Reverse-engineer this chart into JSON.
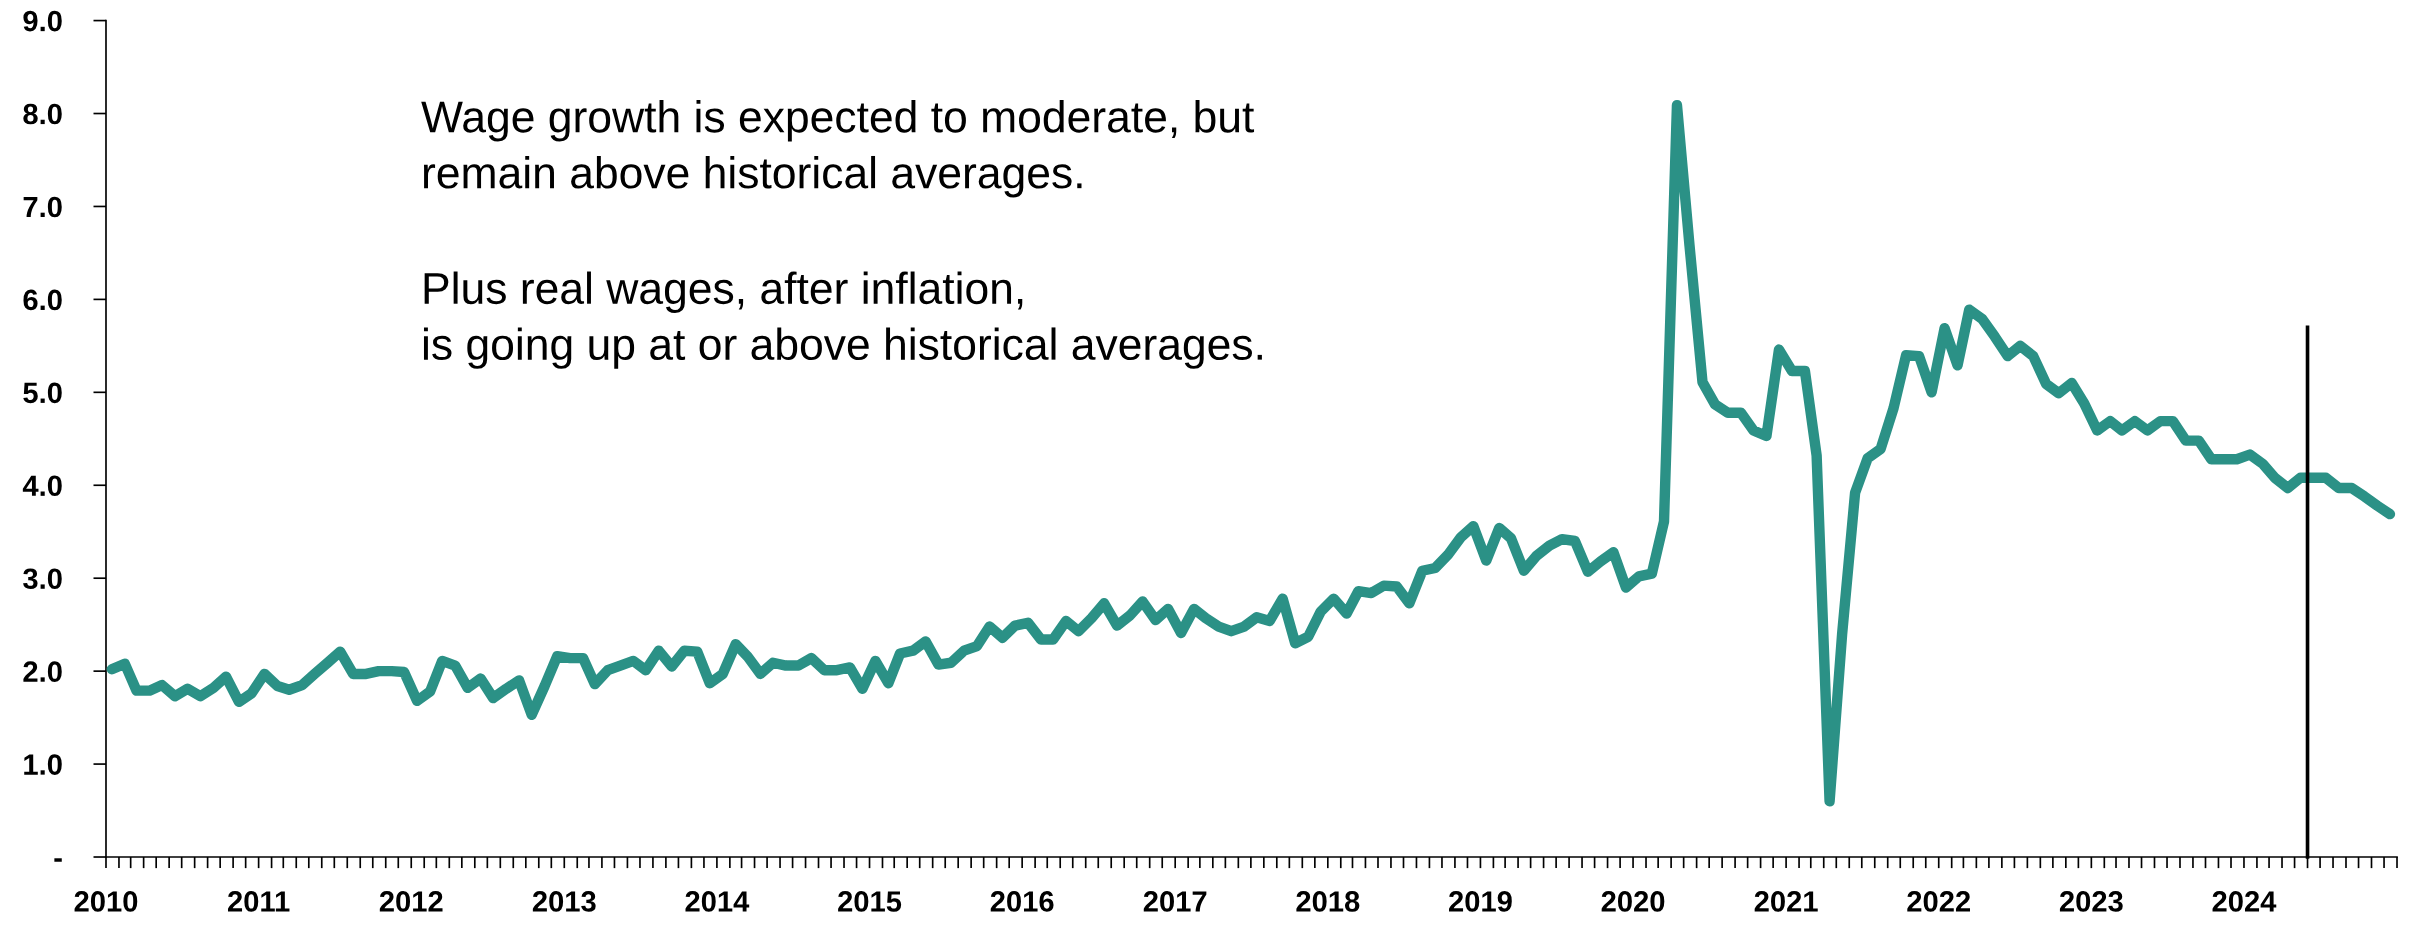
{
  "chart_data": {
    "type": "line",
    "annotations": [
      "Wage growth is expected to moderate, but\nremain above historical averages.",
      "Plus real wages, after inflation,\nis going up at or above historical averages."
    ],
    "series": [
      {
        "color": "#2b9186",
        "x": [
          "2010-01-15",
          "2010-02-15",
          "2010-03-15",
          "2010-04-15",
          "2010-05-15",
          "2010-06-15",
          "2010-07-15",
          "2010-08-15",
          "2010-09-15",
          "2010-10-15",
          "2010-11-15",
          "2010-12-15",
          "2011-01-15",
          "2011-02-15",
          "2011-03-15",
          "2011-04-15",
          "2011-05-15",
          "2011-06-15",
          "2011-07-15",
          "2011-08-15",
          "2011-09-15",
          "2011-10-15",
          "2011-11-15",
          "2011-12-15",
          "2012-01-15",
          "2012-02-15",
          "2012-03-15",
          "2012-04-15",
          "2012-05-15",
          "2012-06-15",
          "2012-07-15",
          "2012-08-15",
          "2012-09-15",
          "2012-10-15",
          "2012-11-15",
          "2012-12-15",
          "2013-01-15",
          "2013-02-15",
          "2013-03-15",
          "2013-04-15",
          "2013-05-15",
          "2013-06-15",
          "2013-07-15",
          "2013-08-15",
          "2013-09-15",
          "2013-10-15",
          "2013-11-15",
          "2013-12-15",
          "2014-01-15",
          "2014-02-15",
          "2014-03-15",
          "2014-04-15",
          "2014-05-15",
          "2014-06-15",
          "2014-07-15",
          "2014-08-15",
          "2014-09-15",
          "2014-10-15",
          "2014-11-15",
          "2014-12-15",
          "2015-01-15",
          "2015-02-15",
          "2015-03-15",
          "2015-04-15",
          "2015-05-15",
          "2015-06-15",
          "2015-07-15",
          "2015-08-15",
          "2015-09-15",
          "2015-10-15",
          "2015-11-15",
          "2015-12-15",
          "2016-01-15",
          "2016-02-15",
          "2016-03-15",
          "2016-04-15",
          "2016-05-15",
          "2016-06-15",
          "2016-07-15",
          "2016-08-15",
          "2016-09-15",
          "2016-10-15",
          "2016-11-15",
          "2016-12-15",
          "2017-01-15",
          "2017-02-15",
          "2017-03-15",
          "2017-04-15",
          "2017-05-15",
          "2017-06-15",
          "2017-07-15",
          "2017-08-15",
          "2017-09-15",
          "2017-10-15",
          "2017-11-15",
          "2017-12-15",
          "2018-01-15",
          "2018-02-15",
          "2018-03-15",
          "2018-04-15",
          "2018-05-15",
          "2018-06-15",
          "2018-07-15",
          "2018-08-15",
          "2018-09-15",
          "2018-10-15",
          "2018-11-15",
          "2018-12-15",
          "2019-01-15",
          "2019-02-15",
          "2019-03-15",
          "2019-04-15",
          "2019-05-15",
          "2019-06-15",
          "2019-07-15",
          "2019-08-15",
          "2019-09-15",
          "2019-10-15",
          "2019-11-15",
          "2019-12-15",
          "2020-01-15",
          "2020-02-15",
          "2020-03-15",
          "2020-04-15",
          "2020-05-15",
          "2020-06-15",
          "2020-07-15",
          "2020-08-15",
          "2020-09-15",
          "2020-10-15",
          "2020-11-15",
          "2020-12-15",
          "2021-01-15",
          "2021-02-15",
          "2021-03-15",
          "2021-04-15",
          "2021-05-15",
          "2021-06-15",
          "2021-07-15",
          "2021-08-15",
          "2021-09-15",
          "2021-10-15",
          "2021-11-15",
          "2021-12-15",
          "2022-01-15",
          "2022-02-15",
          "2022-03-15",
          "2022-04-15",
          "2022-05-15",
          "2022-06-15",
          "2022-07-15",
          "2022-08-15",
          "2022-09-15",
          "2022-10-15",
          "2022-11-15",
          "2022-12-15",
          "2023-01-15",
          "2023-02-15",
          "2023-03-15",
          "2023-04-15",
          "2023-05-15",
          "2023-06-15",
          "2023-07-15",
          "2023-08-15",
          "2023-09-15",
          "2023-10-15",
          "2023-11-15",
          "2023-12-15",
          "2024-01-15",
          "2024-02-15",
          "2024-03-15",
          "2024-04-15",
          "2024-05-15",
          "2024-06-15",
          "2024-07-15",
          "2024-08-15",
          "2024-09-15",
          "2024-10-15",
          "2024-11-15",
          "2024-12-15"
        ],
        "values": [
          2.02,
          2.08,
          1.79,
          1.79,
          1.85,
          1.73,
          1.81,
          1.73,
          1.82,
          1.94,
          1.67,
          1.76,
          1.97,
          1.84,
          1.8,
          1.85,
          1.97,
          2.09,
          2.21,
          1.97,
          1.97,
          2.0,
          2.0,
          1.99,
          1.68,
          1.78,
          2.11,
          2.06,
          1.82,
          1.92,
          1.71,
          1.81,
          1.9,
          1.53,
          1.84,
          2.16,
          2.14,
          2.14,
          1.86,
          2.01,
          2.06,
          2.11,
          2.01,
          2.22,
          2.05,
          2.22,
          2.21,
          1.87,
          1.97,
          2.29,
          2.16,
          1.97,
          2.09,
          2.06,
          2.06,
          2.14,
          2.01,
          2.01,
          2.04,
          1.81,
          2.11,
          1.87,
          2.19,
          2.22,
          2.32,
          2.07,
          2.09,
          2.22,
          2.27,
          2.48,
          2.36,
          2.49,
          2.52,
          2.34,
          2.34,
          2.54,
          2.43,
          2.57,
          2.73,
          2.49,
          2.6,
          2.75,
          2.55,
          2.67,
          2.41,
          2.67,
          2.57,
          2.48,
          2.43,
          2.48,
          2.58,
          2.54,
          2.78,
          2.3,
          2.37,
          2.64,
          2.78,
          2.62,
          2.86,
          2.84,
          2.92,
          2.91,
          2.73,
          3.08,
          3.11,
          3.25,
          3.44,
          3.56,
          3.19,
          3.54,
          3.43,
          3.08,
          3.24,
          3.35,
          3.42,
          3.4,
          3.07,
          3.18,
          3.28,
          2.9,
          3.02,
          3.05,
          3.61,
          8.09,
          6.58,
          5.11,
          4.87,
          4.78,
          4.78,
          4.59,
          4.53,
          5.46,
          5.23,
          5.23,
          4.32,
          0.6,
          2.4,
          3.92,
          4.29,
          4.39,
          4.83,
          5.4,
          5.39,
          5.0,
          5.69,
          5.29,
          5.89,
          5.79,
          5.6,
          5.39,
          5.5,
          5.39,
          5.09,
          4.99,
          5.1,
          4.88,
          4.59,
          4.69,
          4.59,
          4.69,
          4.59,
          4.69,
          4.69,
          4.48,
          4.48,
          4.28,
          4.28,
          4.28,
          4.33,
          4.23,
          4.08,
          3.97,
          4.08,
          4.08,
          4.08,
          3.97,
          3.97,
          3.88,
          3.78,
          3.69
        ]
      },
      {
        "color": "#000000",
        "x": [
          "2024-06-01",
          "2024-06-01"
        ],
        "values": [
          0,
          5.7
        ]
      }
    ],
    "xlim": [
      "2010-01-01",
      "2025-01-01"
    ],
    "xticks": [
      {
        "value": "2010-01-01",
        "label": "2010"
      },
      {
        "value": "2010-02-01",
        "label": null
      },
      {
        "value": "2010-03-01",
        "label": null
      },
      {
        "value": "2010-04-01",
        "label": null
      },
      {
        "value": "2010-05-01",
        "label": null
      },
      {
        "value": "2010-06-01",
        "label": null
      },
      {
        "value": "2010-07-01",
        "label": null
      },
      {
        "value": "2010-08-01",
        "label": null
      },
      {
        "value": "2010-09-01",
        "label": null
      },
      {
        "value": "2010-10-01",
        "label": null
      },
      {
        "value": "2010-11-01",
        "label": null
      },
      {
        "value": "2010-12-01",
        "label": null
      },
      {
        "value": "2011-01-01",
        "label": "2011"
      },
      {
        "value": "2011-02-01",
        "label": null
      },
      {
        "value": "2011-03-01",
        "label": null
      },
      {
        "value": "2011-04-01",
        "label": null
      },
      {
        "value": "2011-05-01",
        "label": null
      },
      {
        "value": "2011-06-01",
        "label": null
      },
      {
        "value": "2011-07-01",
        "label": null
      },
      {
        "value": "2011-08-01",
        "label": null
      },
      {
        "value": "2011-09-01",
        "label": null
      },
      {
        "value": "2011-10-01",
        "label": null
      },
      {
        "value": "2011-11-01",
        "label": null
      },
      {
        "value": "2011-12-01",
        "label": null
      },
      {
        "value": "2012-01-01",
        "label": "2012"
      },
      {
        "value": "2012-02-01",
        "label": null
      },
      {
        "value": "2012-03-01",
        "label": null
      },
      {
        "value": "2012-04-01",
        "label": null
      },
      {
        "value": "2012-05-01",
        "label": null
      },
      {
        "value": "2012-06-01",
        "label": null
      },
      {
        "value": "2012-07-01",
        "label": null
      },
      {
        "value": "2012-08-01",
        "label": null
      },
      {
        "value": "2012-09-01",
        "label": null
      },
      {
        "value": "2012-10-01",
        "label": null
      },
      {
        "value": "2012-11-01",
        "label": null
      },
      {
        "value": "2012-12-01",
        "label": null
      },
      {
        "value": "2013-01-01",
        "label": "2013"
      },
      {
        "value": "2013-02-01",
        "label": null
      },
      {
        "value": "2013-03-01",
        "label": null
      },
      {
        "value": "2013-04-01",
        "label": null
      },
      {
        "value": "2013-05-01",
        "label": null
      },
      {
        "value": "2013-06-01",
        "label": null
      },
      {
        "value": "2013-07-01",
        "label": null
      },
      {
        "value": "2013-08-01",
        "label": null
      },
      {
        "value": "2013-09-01",
        "label": null
      },
      {
        "value": "2013-10-01",
        "label": null
      },
      {
        "value": "2013-11-01",
        "label": null
      },
      {
        "value": "2013-12-01",
        "label": null
      },
      {
        "value": "2014-01-01",
        "label": "2014"
      },
      {
        "value": "2014-02-01",
        "label": null
      },
      {
        "value": "2014-03-01",
        "label": null
      },
      {
        "value": "2014-04-01",
        "label": null
      },
      {
        "value": "2014-05-01",
        "label": null
      },
      {
        "value": "2014-06-01",
        "label": null
      },
      {
        "value": "2014-07-01",
        "label": null
      },
      {
        "value": "2014-08-01",
        "label": null
      },
      {
        "value": "2014-09-01",
        "label": null
      },
      {
        "value": "2014-10-01",
        "label": null
      },
      {
        "value": "2014-11-01",
        "label": null
      },
      {
        "value": "2014-12-01",
        "label": null
      },
      {
        "value": "2015-01-01",
        "label": "2015"
      },
      {
        "value": "2015-02-01",
        "label": null
      },
      {
        "value": "2015-03-01",
        "label": null
      },
      {
        "value": "2015-04-01",
        "label": null
      },
      {
        "value": "2015-05-01",
        "label": null
      },
      {
        "value": "2015-06-01",
        "label": null
      },
      {
        "value": "2015-07-01",
        "label": null
      },
      {
        "value": "2015-08-01",
        "label": null
      },
      {
        "value": "2015-09-01",
        "label": null
      },
      {
        "value": "2015-10-01",
        "label": null
      },
      {
        "value": "2015-11-01",
        "label": null
      },
      {
        "value": "2015-12-01",
        "label": null
      },
      {
        "value": "2016-01-01",
        "label": "2016"
      },
      {
        "value": "2016-02-01",
        "label": null
      },
      {
        "value": "2016-03-01",
        "label": null
      },
      {
        "value": "2016-04-01",
        "label": null
      },
      {
        "value": "2016-05-01",
        "label": null
      },
      {
        "value": "2016-06-01",
        "label": null
      },
      {
        "value": "2016-07-01",
        "label": null
      },
      {
        "value": "2016-08-01",
        "label": null
      },
      {
        "value": "2016-09-01",
        "label": null
      },
      {
        "value": "2016-10-01",
        "label": null
      },
      {
        "value": "2016-11-01",
        "label": null
      },
      {
        "value": "2016-12-01",
        "label": null
      },
      {
        "value": "2017-01-01",
        "label": "2017"
      },
      {
        "value": "2017-02-01",
        "label": null
      },
      {
        "value": "2017-03-01",
        "label": null
      },
      {
        "value": "2017-04-01",
        "label": null
      },
      {
        "value": "2017-05-01",
        "label": null
      },
      {
        "value": "2017-06-01",
        "label": null
      },
      {
        "value": "2017-07-01",
        "label": null
      },
      {
        "value": "2017-08-01",
        "label": null
      },
      {
        "value": "2017-09-01",
        "label": null
      },
      {
        "value": "2017-10-01",
        "label": null
      },
      {
        "value": "2017-11-01",
        "label": null
      },
      {
        "value": "2017-12-01",
        "label": null
      },
      {
        "value": "2018-01-01",
        "label": "2018"
      },
      {
        "value": "2018-02-01",
        "label": null
      },
      {
        "value": "2018-03-01",
        "label": null
      },
      {
        "value": "2018-04-01",
        "label": null
      },
      {
        "value": "2018-05-01",
        "label": null
      },
      {
        "value": "2018-06-01",
        "label": null
      },
      {
        "value": "2018-07-01",
        "label": null
      },
      {
        "value": "2018-08-01",
        "label": null
      },
      {
        "value": "2018-09-01",
        "label": null
      },
      {
        "value": "2018-10-01",
        "label": null
      },
      {
        "value": "2018-11-01",
        "label": null
      },
      {
        "value": "2018-12-01",
        "label": null
      },
      {
        "value": "2019-01-01",
        "label": "2019"
      },
      {
        "value": "2019-02-01",
        "label": null
      },
      {
        "value": "2019-03-01",
        "label": null
      },
      {
        "value": "2019-04-01",
        "label": null
      },
      {
        "value": "2019-05-01",
        "label": null
      },
      {
        "value": "2019-06-01",
        "label": null
      },
      {
        "value": "2019-07-01",
        "label": null
      },
      {
        "value": "2019-08-01",
        "label": null
      },
      {
        "value": "2019-09-01",
        "label": null
      },
      {
        "value": "2019-10-01",
        "label": null
      },
      {
        "value": "2019-11-01",
        "label": null
      },
      {
        "value": "2019-12-01",
        "label": null
      },
      {
        "value": "2020-01-01",
        "label": "2020"
      },
      {
        "value": "2020-02-01",
        "label": null
      },
      {
        "value": "2020-03-01",
        "label": null
      },
      {
        "value": "2020-04-01",
        "label": null
      },
      {
        "value": "2020-05-01",
        "label": null
      },
      {
        "value": "2020-06-01",
        "label": null
      },
      {
        "value": "2020-07-01",
        "label": null
      },
      {
        "value": "2020-08-01",
        "label": null
      },
      {
        "value": "2020-09-01",
        "label": null
      },
      {
        "value": "2020-10-01",
        "label": null
      },
      {
        "value": "2020-11-01",
        "label": null
      },
      {
        "value": "2020-12-01",
        "label": null
      },
      {
        "value": "2021-01-01",
        "label": "2021"
      },
      {
        "value": "2021-02-01",
        "label": null
      },
      {
        "value": "2021-03-01",
        "label": null
      },
      {
        "value": "2021-04-01",
        "label": null
      },
      {
        "value": "2021-05-01",
        "label": null
      },
      {
        "value": "2021-06-01",
        "label": null
      },
      {
        "value": "2021-07-01",
        "label": null
      },
      {
        "value": "2021-08-01",
        "label": null
      },
      {
        "value": "2021-09-01",
        "label": null
      },
      {
        "value": "2021-10-01",
        "label": null
      },
      {
        "value": "2021-11-01",
        "label": null
      },
      {
        "value": "2021-12-01",
        "label": null
      },
      {
        "value": "2022-01-01",
        "label": "2022"
      },
      {
        "value": "2022-02-01",
        "label": null
      },
      {
        "value": "2022-03-01",
        "label": null
      },
      {
        "value": "2022-04-01",
        "label": null
      },
      {
        "value": "2022-05-01",
        "label": null
      },
      {
        "value": "2022-06-01",
        "label": null
      },
      {
        "value": "2022-07-01",
        "label": null
      },
      {
        "value": "2022-08-01",
        "label": null
      },
      {
        "value": "2022-09-01",
        "label": null
      },
      {
        "value": "2022-10-01",
        "label": null
      },
      {
        "value": "2022-11-01",
        "label": null
      },
      {
        "value": "2022-12-01",
        "label": null
      },
      {
        "value": "2023-01-01",
        "label": "2023"
      },
      {
        "value": "2023-02-01",
        "label": null
      },
      {
        "value": "2023-03-01",
        "label": null
      },
      {
        "value": "2023-04-01",
        "label": null
      },
      {
        "value": "2023-05-01",
        "label": null
      },
      {
        "value": "2023-06-01",
        "label": null
      },
      {
        "value": "2023-07-01",
        "label": null
      },
      {
        "value": "2023-08-01",
        "label": null
      },
      {
        "value": "2023-09-01",
        "label": null
      },
      {
        "value": "2023-10-01",
        "label": null
      },
      {
        "value": "2023-11-01",
        "label": null
      },
      {
        "value": "2023-12-01",
        "label": null
      },
      {
        "value": "2024-01-01",
        "label": "2024"
      },
      {
        "value": "2024-02-01",
        "label": null
      },
      {
        "value": "2024-03-01",
        "label": null
      },
      {
        "value": "2024-04-01",
        "label": null
      },
      {
        "value": "2024-05-01",
        "label": null
      },
      {
        "value": "2024-06-01",
        "label": null
      },
      {
        "value": "2024-07-01",
        "label": null
      },
      {
        "value": "2024-08-01",
        "label": null
      },
      {
        "value": "2024-09-01",
        "label": null
      },
      {
        "value": "2024-10-01",
        "label": null
      },
      {
        "value": "2024-11-01",
        "label": null
      },
      {
        "value": "2024-12-01",
        "label": null
      },
      {
        "value": "2025-01-01",
        "label": null
      }
    ],
    "ylim": [
      0,
      9
    ],
    "yticks": [
      {
        "value": 0,
        "label": "-"
      },
      {
        "value": 1,
        "label": "1.0"
      },
      {
        "value": 2,
        "label": "2.0"
      },
      {
        "value": 3,
        "label": "3.0"
      },
      {
        "value": 4,
        "label": "4.0"
      },
      {
        "value": 5,
        "label": "5.0"
      },
      {
        "value": 6,
        "label": "6.0"
      },
      {
        "value": 7,
        "label": "7.0"
      },
      {
        "value": 8,
        "label": "8.0"
      },
      {
        "value": 9,
        "label": "9.0"
      }
    ],
    "marker": "none",
    "line_style": "solid"
  }
}
